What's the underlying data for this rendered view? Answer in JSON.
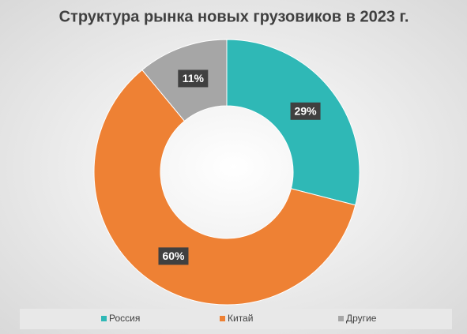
{
  "chart_data": {
    "type": "donut",
    "title": "Структура рынка новых грузовиков в 2023 г.",
    "categories": [
      "Россия",
      "Китай",
      "Другие"
    ],
    "values": [
      29,
      60,
      11
    ],
    "value_labels": [
      "29%",
      "60%",
      "11%"
    ],
    "colors": [
      "#2fb8b6",
      "#ee8134",
      "#a6a6a6"
    ],
    "legend": "bottom"
  }
}
